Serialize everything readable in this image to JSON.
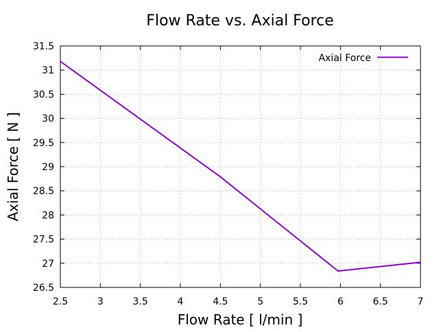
{
  "chart_data": {
    "type": "line",
    "title": "Flow Rate vs. Axial Force",
    "xlabel": "Flow Rate [ l/min ]",
    "ylabel": "Axial Force [ N ]",
    "xlim": [
      2.5,
      7
    ],
    "ylim": [
      26.5,
      31.5
    ],
    "x_ticks": [
      2.5,
      3,
      3.5,
      4,
      4.5,
      5,
      5.5,
      6,
      6.5,
      7
    ],
    "x_tick_labels": [
      "2.5",
      "3",
      "3.5",
      "4",
      "4.5",
      "5",
      "5.5",
      "6",
      "6.5",
      "7"
    ],
    "y_ticks": [
      26.5,
      27,
      27.5,
      28,
      28.5,
      29,
      29.5,
      30,
      30.5,
      31,
      31.5
    ],
    "y_tick_labels": [
      "26.5",
      "27",
      "27.5",
      "28",
      "28.5",
      "29",
      "29.5",
      "30",
      "30.5",
      "31",
      "31.5"
    ],
    "grid": true,
    "legend_position": "top-right",
    "series": [
      {
        "name": "Axial Force",
        "color": "#9400d3",
        "x": [
          2.5,
          4.5,
          5.97,
          7
        ],
        "y": [
          31.18,
          28.79,
          26.84,
          27.02
        ]
      }
    ]
  }
}
